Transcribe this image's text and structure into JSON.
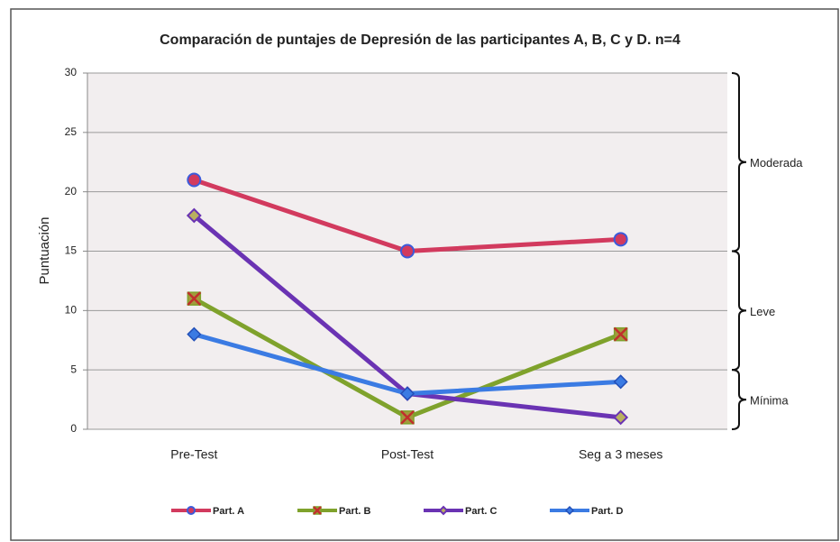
{
  "chart_data": {
    "type": "line",
    "title": "Comparación de puntajes de Depresión de las participantes A, B, C y D. n=4",
    "y_label": "Puntuación",
    "categories": [
      "Pre-Test",
      "Post-Test",
      "Seg a 3 meses"
    ],
    "series": [
      {
        "name": "Part. A",
        "color": "#d23a5e",
        "marker": "circle",
        "values": [
          21,
          15,
          16
        ]
      },
      {
        "name": "Part. B",
        "color": "#7fa22c",
        "marker": "square",
        "values": [
          11,
          1,
          8
        ]
      },
      {
        "name": "Part. C",
        "color": "#6a33b3",
        "marker": "cross",
        "values": [
          18,
          3,
          1
        ]
      },
      {
        "name": "Part. D",
        "color": "#3b7be3",
        "marker": "diamond",
        "values": [
          8,
          3,
          4
        ]
      }
    ],
    "ylim": [
      0,
      30
    ],
    "yticks": [
      0,
      5,
      10,
      15,
      20,
      25,
      30
    ],
    "grid": true,
    "legend": "bottom",
    "ranges": [
      {
        "label": "Moderada",
        "from": 15,
        "to": 30
      },
      {
        "label": "Leve",
        "from": 5,
        "to": 15
      },
      {
        "label": "Mínima",
        "from": 0,
        "to": 5
      }
    ]
  }
}
